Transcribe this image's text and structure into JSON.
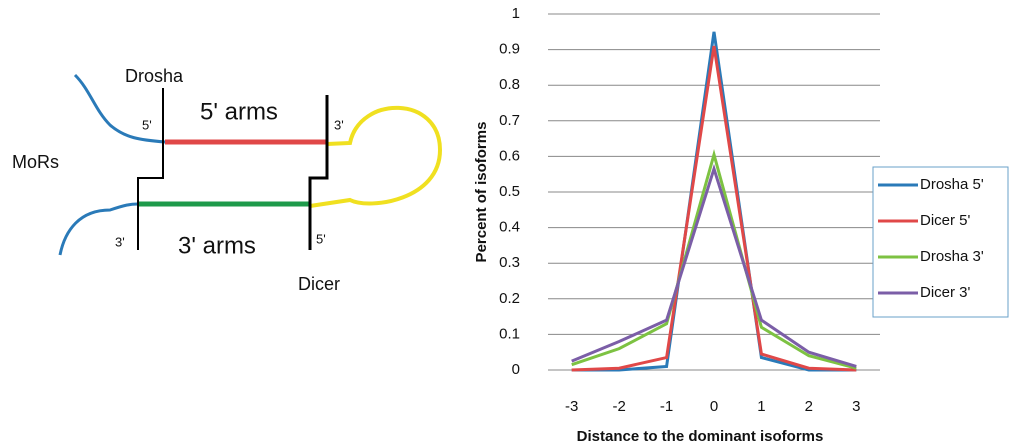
{
  "diagram": {
    "labels": {
      "drosha": "Drosha",
      "arms5": "5' arms",
      "drosha_end": "5'",
      "dicer_end": "3'",
      "mors": "MoRs",
      "arms3_end": "3'",
      "arms3": "3' arms",
      "dicer_end2": "5'",
      "dicer": "Dicer"
    }
  },
  "chart_data": {
    "type": "line",
    "xlabel": "Distance to the dominant isoforms",
    "ylabel": "Percent of isoforms",
    "categories": [
      "-3",
      "-2",
      "-1",
      "0",
      "1",
      "2",
      "3"
    ],
    "series": [
      {
        "name": "Drosha 5'",
        "color": "#2a7ab8",
        "values": [
          0,
          0,
          0.01,
          0.95,
          0.035,
          0,
          0
        ]
      },
      {
        "name": "Dicer 5'",
        "color": "#e04848",
        "values": [
          0,
          0.005,
          0.035,
          0.91,
          0.045,
          0.005,
          0
        ]
      },
      {
        "name": "Drosha 3'",
        "color": "#7dc242",
        "values": [
          0.015,
          0.06,
          0.13,
          0.605,
          0.12,
          0.04,
          0.005
        ]
      },
      {
        "name": "Dicer 3'",
        "color": "#7b5ea7",
        "values": [
          0.025,
          0.08,
          0.14,
          0.565,
          0.14,
          0.05,
          0.01
        ]
      }
    ],
    "ylim": [
      0,
      1
    ],
    "yticks": [
      0,
      0.1,
      0.2,
      0.3,
      0.4,
      0.5,
      0.6,
      0.7,
      0.8,
      0.9,
      1
    ],
    "grid": true,
    "legend": "right"
  }
}
